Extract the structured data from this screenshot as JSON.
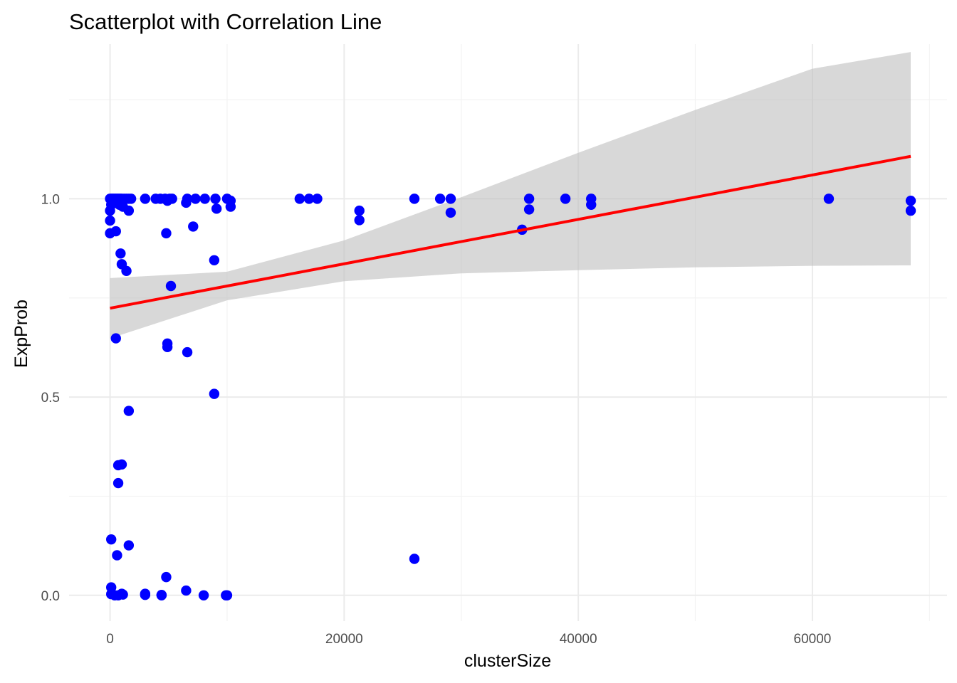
{
  "chart_data": {
    "type": "scatter",
    "title": "Scatterplot with Correlation Line",
    "xlabel": "clusterSize",
    "ylabel": "ExpProb",
    "xlim": [
      -3500,
      71500
    ],
    "ylim": [
      -0.065,
      1.39
    ],
    "x_ticks": [
      0,
      20000,
      40000,
      60000
    ],
    "x_tick_labels": [
      "0",
      "20000",
      "40000",
      "60000"
    ],
    "x_minor_ticks": [
      10000,
      30000,
      50000,
      70000
    ],
    "y_ticks": [
      0.0,
      0.5,
      1.0
    ],
    "y_tick_labels": [
      "0.0",
      "0.5",
      "1.0"
    ],
    "y_minor_ticks": [
      0.25,
      0.75,
      1.25
    ],
    "grid": true,
    "point_color": "#0000ff",
    "fit_line": {
      "method": "linear",
      "color": "#ff0000",
      "x": [
        0,
        68400
      ],
      "y": [
        0.724,
        1.107
      ]
    },
    "confidence_band": {
      "color": "#bebebe",
      "x": [
        0,
        10000,
        20000,
        30000,
        40000,
        50000,
        60000,
        68400
      ],
      "upper": [
        0.8,
        0.816,
        0.895,
        1.004,
        1.116,
        1.224,
        1.328,
        1.37
      ],
      "lower": [
        0.648,
        0.744,
        0.792,
        0.812,
        0.82,
        0.827,
        0.831,
        0.832
      ]
    },
    "points": [
      {
        "x": 0,
        "y": 1.0
      },
      {
        "x": 100,
        "y": 1.0
      },
      {
        "x": 200,
        "y": 1.0
      },
      {
        "x": 300,
        "y": 1.0
      },
      {
        "x": 400,
        "y": 1.0
      },
      {
        "x": 500,
        "y": 1.0
      },
      {
        "x": 600,
        "y": 1.0
      },
      {
        "x": 700,
        "y": 1.0
      },
      {
        "x": 800,
        "y": 1.0
      },
      {
        "x": 900,
        "y": 1.0
      },
      {
        "x": 1000,
        "y": 1.0
      },
      {
        "x": 1200,
        "y": 1.0
      },
      {
        "x": 1400,
        "y": 1.0
      },
      {
        "x": 1600,
        "y": 1.0
      },
      {
        "x": 1800,
        "y": 1.0
      },
      {
        "x": 100,
        "y": 0.985
      },
      {
        "x": 300,
        "y": 0.995
      },
      {
        "x": 500,
        "y": 0.99
      },
      {
        "x": 800,
        "y": 0.985
      },
      {
        "x": 1100,
        "y": 0.98
      },
      {
        "x": 1600,
        "y": 0.97
      },
      {
        "x": 0,
        "y": 0.97
      },
      {
        "x": 0,
        "y": 0.945
      },
      {
        "x": 0,
        "y": 0.913
      },
      {
        "x": 500,
        "y": 0.918
      },
      {
        "x": 900,
        "y": 0.862
      },
      {
        "x": 1000,
        "y": 0.835
      },
      {
        "x": 1400,
        "y": 0.818
      },
      {
        "x": 500,
        "y": 0.648
      },
      {
        "x": 1600,
        "y": 0.465
      },
      {
        "x": 700,
        "y": 0.328
      },
      {
        "x": 1000,
        "y": 0.33
      },
      {
        "x": 700,
        "y": 0.283
      },
      {
        "x": 100,
        "y": 0.141
      },
      {
        "x": 1600,
        "y": 0.126
      },
      {
        "x": 600,
        "y": 0.101
      },
      {
        "x": 100,
        "y": 0.02
      },
      {
        "x": 100,
        "y": 0.003
      },
      {
        "x": 400,
        "y": 0.0
      },
      {
        "x": 700,
        "y": 0.0
      },
      {
        "x": 1000,
        "y": 0.004
      },
      {
        "x": 1100,
        "y": 0.002
      },
      {
        "x": 3000,
        "y": 1.0
      },
      {
        "x": 3900,
        "y": 1.0
      },
      {
        "x": 4300,
        "y": 1.0
      },
      {
        "x": 4700,
        "y": 1.0
      },
      {
        "x": 4900,
        "y": 0.995
      },
      {
        "x": 5100,
        "y": 1.0
      },
      {
        "x": 5300,
        "y": 1.0
      },
      {
        "x": 6500,
        "y": 0.99
      },
      {
        "x": 6600,
        "y": 1.0
      },
      {
        "x": 7300,
        "y": 1.0
      },
      {
        "x": 8100,
        "y": 1.0
      },
      {
        "x": 9000,
        "y": 1.0
      },
      {
        "x": 9100,
        "y": 0.975
      },
      {
        "x": 10000,
        "y": 1.0
      },
      {
        "x": 10300,
        "y": 0.995
      },
      {
        "x": 10300,
        "y": 0.98
      },
      {
        "x": 4800,
        "y": 0.913
      },
      {
        "x": 7100,
        "y": 0.93
      },
      {
        "x": 8900,
        "y": 0.845
      },
      {
        "x": 5200,
        "y": 0.78
      },
      {
        "x": 4900,
        "y": 0.635
      },
      {
        "x": 4900,
        "y": 0.626
      },
      {
        "x": 6600,
        "y": 0.613
      },
      {
        "x": 8900,
        "y": 0.508
      },
      {
        "x": 4800,
        "y": 0.046
      },
      {
        "x": 6500,
        "y": 0.012
      },
      {
        "x": 3000,
        "y": 0.004
      },
      {
        "x": 3000,
        "y": 0.001
      },
      {
        "x": 4400,
        "y": 0.001
      },
      {
        "x": 4400,
        "y": 0.0
      },
      {
        "x": 8000,
        "y": 0.0
      },
      {
        "x": 9900,
        "y": 0.0
      },
      {
        "x": 10000,
        "y": 0.0
      },
      {
        "x": 16200,
        "y": 1.0
      },
      {
        "x": 17000,
        "y": 1.0
      },
      {
        "x": 17700,
        "y": 1.0
      },
      {
        "x": 21300,
        "y": 0.97
      },
      {
        "x": 21300,
        "y": 0.946
      },
      {
        "x": 26000,
        "y": 1.0
      },
      {
        "x": 26000,
        "y": 0.092
      },
      {
        "x": 28200,
        "y": 1.0
      },
      {
        "x": 29100,
        "y": 1.0
      },
      {
        "x": 29100,
        "y": 0.965
      },
      {
        "x": 35200,
        "y": 0.922
      },
      {
        "x": 35800,
        "y": 1.0
      },
      {
        "x": 35800,
        "y": 0.973
      },
      {
        "x": 38900,
        "y": 1.0
      },
      {
        "x": 41100,
        "y": 1.0
      },
      {
        "x": 41100,
        "y": 0.985
      },
      {
        "x": 61400,
        "y": 1.0
      },
      {
        "x": 68400,
        "y": 0.995
      },
      {
        "x": 68400,
        "y": 0.97
      }
    ]
  }
}
